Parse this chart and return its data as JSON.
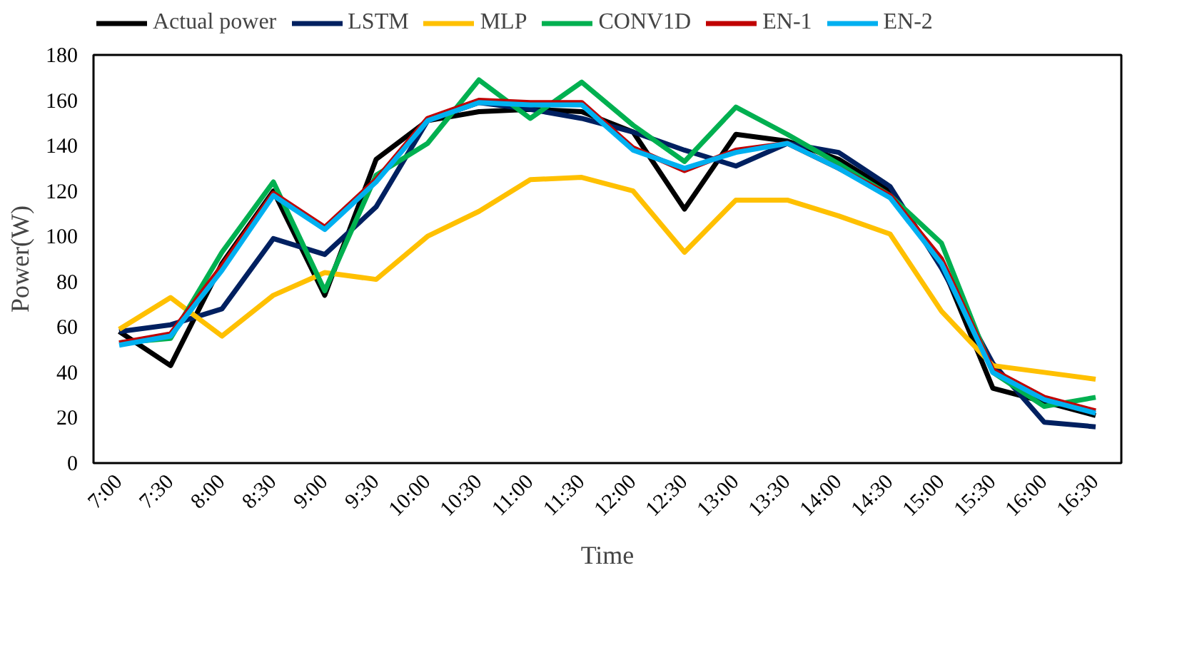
{
  "chart_data": {
    "type": "line",
    "xlabel": "Time",
    "ylabel": "Power(W)",
    "categories": [
      "7:00",
      "7:30",
      "8:00",
      "8:30",
      "9:00",
      "9:30",
      "10:00",
      "10:30",
      "11:00",
      "11:30",
      "12:00",
      "12:30",
      "13:00",
      "13:30",
      "14:00",
      "14:30",
      "15:00",
      "15:30",
      "16:00",
      "16:30"
    ],
    "ylim": [
      0,
      180
    ],
    "yticks": [
      0,
      20,
      40,
      60,
      80,
      100,
      120,
      140,
      160,
      180
    ],
    "grid": false,
    "legend": "top",
    "marker": "none",
    "line_style": "solid",
    "series": [
      {
        "name": "Actual power",
        "color": "#000000",
        "values": [
          58,
          43,
          88,
          120,
          74,
          134,
          151,
          155,
          156,
          155,
          146,
          112,
          145,
          142,
          134,
          120,
          88,
          33,
          27,
          21
        ]
      },
      {
        "name": "LSTM",
        "color": "#002060",
        "values": [
          58,
          61,
          68,
          99,
          92,
          113,
          151,
          159,
          156,
          152,
          146,
          138,
          131,
          141,
          137,
          122,
          86,
          44,
          18,
          16
        ]
      },
      {
        "name": "MLP",
        "color": "#ffc000",
        "values": [
          59,
          73,
          56,
          74,
          84,
          81,
          100,
          111,
          125,
          126,
          120,
          93,
          116,
          116,
          109,
          101,
          67,
          43,
          40,
          37
        ]
      },
      {
        "name": "CONV1D",
        "color": "#00b050",
        "values": [
          53,
          55,
          93,
          124,
          76,
          127,
          141,
          169,
          152,
          168,
          149,
          133,
          157,
          145,
          132,
          118,
          97,
          40,
          25,
          29
        ]
      },
      {
        "name": "EN-1",
        "color": "#c00000",
        "values": [
          53,
          57,
          87,
          119,
          104,
          125,
          152,
          160,
          159,
          159,
          139,
          129,
          138,
          141,
          130,
          118,
          90,
          41,
          29,
          23
        ]
      },
      {
        "name": "EN-2",
        "color": "#00b0f0",
        "values": [
          52,
          56,
          85,
          118,
          103,
          124,
          151,
          159,
          158,
          158,
          138,
          130,
          137,
          141,
          130,
          117,
          88,
          40,
          28,
          22
        ]
      }
    ]
  }
}
